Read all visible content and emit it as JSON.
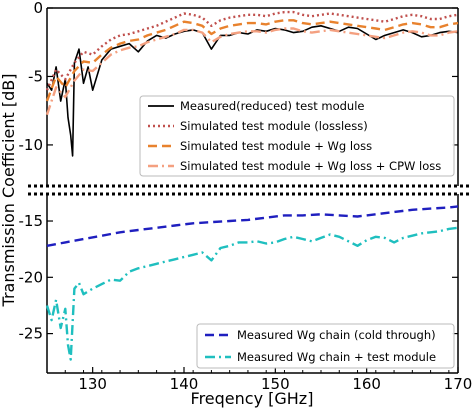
{
  "chart_data": [
    {
      "type": "line",
      "panel": "top",
      "xlim": [
        125,
        170
      ],
      "ylim": [
        -13,
        0
      ],
      "yticks": [
        0,
        -5,
        -10
      ],
      "ytick_labels": [
        "0",
        "-5",
        "-10"
      ],
      "legend_position": "lower-right",
      "series": [
        {
          "name": "Measured(reduced) test module",
          "color": "#000000",
          "style": "solid",
          "x": [
            125,
            125.5,
            126,
            126.5,
            127,
            127.3,
            127.6,
            127.8,
            128,
            128.5,
            129,
            129.5,
            130,
            131,
            132,
            133,
            134,
            135,
            136,
            137,
            138,
            139,
            140,
            141,
            142,
            143,
            144,
            145,
            146,
            147,
            148,
            149,
            150,
            151,
            152,
            153,
            154,
            155,
            156,
            157,
            158,
            159,
            160,
            161,
            162,
            163,
            164,
            165,
            166,
            167,
            168,
            169,
            170
          ],
          "y": [
            -5.5,
            -6.0,
            -4.3,
            -6.8,
            -5.2,
            -8.0,
            -9.3,
            -10.8,
            -4.0,
            -3.0,
            -5.5,
            -4.3,
            -6.0,
            -3.8,
            -3.0,
            -2.8,
            -2.6,
            -3.2,
            -2.4,
            -2.0,
            -2.2,
            -1.9,
            -1.7,
            -1.6,
            -1.8,
            -3.0,
            -2.0,
            -2.0,
            -1.8,
            -1.9,
            -1.6,
            -1.7,
            -1.5,
            -1.6,
            -1.8,
            -1.7,
            -1.4,
            -1.3,
            -1.5,
            -1.7,
            -1.4,
            -1.5,
            -1.9,
            -2.3,
            -2.0,
            -1.8,
            -1.6,
            -1.8,
            -2.1,
            -2.0,
            -1.8,
            -1.7,
            -1.8
          ]
        },
        {
          "name": "Simulated test module (lossless)",
          "color": "#c0504d",
          "style": "dotted",
          "x": [
            125,
            126,
            127,
            128,
            129,
            130,
            131,
            132,
            133,
            134,
            135,
            136,
            137,
            138,
            139,
            140,
            141,
            142,
            143,
            144,
            145,
            146,
            147,
            148,
            149,
            150,
            151,
            152,
            153,
            154,
            155,
            156,
            157,
            158,
            159,
            160,
            161,
            162,
            163,
            164,
            165,
            166,
            167,
            168,
            169,
            170
          ],
          "y": [
            -6.0,
            -4.5,
            -5.2,
            -4.0,
            -3.2,
            -3.4,
            -2.8,
            -2.3,
            -2.0,
            -1.9,
            -1.7,
            -1.5,
            -1.3,
            -1.0,
            -0.7,
            -0.4,
            -0.5,
            -0.7,
            -1.3,
            -0.9,
            -0.7,
            -0.6,
            -0.5,
            -0.5,
            -0.6,
            -0.4,
            -0.3,
            -0.3,
            -0.5,
            -0.6,
            -0.5,
            -0.4,
            -0.5,
            -0.6,
            -0.7,
            -0.8,
            -0.9,
            -1.0,
            -0.8,
            -0.6,
            -0.5,
            -0.6,
            -0.8,
            -0.8,
            -0.6,
            -0.5
          ]
        },
        {
          "name": "Simulated test module + Wg loss",
          "color": "#e8822e",
          "style": "dashed",
          "x": [
            125,
            126,
            127,
            128,
            129,
            130,
            131,
            132,
            133,
            134,
            135,
            136,
            137,
            138,
            139,
            140,
            141,
            142,
            143,
            144,
            145,
            146,
            147,
            148,
            149,
            150,
            151,
            152,
            153,
            154,
            155,
            156,
            157,
            158,
            159,
            160,
            161,
            162,
            163,
            164,
            165,
            166,
            167,
            168,
            169,
            170
          ],
          "y": [
            -6.8,
            -5.0,
            -5.8,
            -4.6,
            -3.9,
            -4.0,
            -3.4,
            -2.9,
            -2.6,
            -2.4,
            -2.3,
            -2.0,
            -1.8,
            -1.6,
            -1.3,
            -1.0,
            -1.1,
            -1.3,
            -1.9,
            -1.5,
            -1.3,
            -1.2,
            -1.1,
            -1.1,
            -1.2,
            -1.0,
            -0.9,
            -0.9,
            -1.1,
            -1.2,
            -1.1,
            -1.0,
            -1.1,
            -1.2,
            -1.3,
            -1.4,
            -1.5,
            -1.6,
            -1.4,
            -1.2,
            -1.1,
            -1.2,
            -1.4,
            -1.4,
            -1.2,
            -1.1
          ]
        },
        {
          "name": "Simulated test module + Wg loss + CPW loss",
          "color": "#f4a080",
          "style": "dashdot",
          "x": [
            125,
            126,
            127,
            128,
            129,
            130,
            131,
            132,
            133,
            134,
            135,
            136,
            137,
            138,
            139,
            140,
            141,
            142,
            143,
            144,
            145,
            146,
            147,
            148,
            149,
            150,
            151,
            152,
            153,
            154,
            155,
            156,
            157,
            158,
            159,
            160,
            161,
            162,
            163,
            164,
            165,
            166,
            167,
            168,
            169,
            170
          ],
          "y": [
            -7.8,
            -5.8,
            -6.5,
            -5.3,
            -4.5,
            -4.6,
            -4.0,
            -3.4,
            -3.1,
            -2.9,
            -2.8,
            -2.5,
            -2.3,
            -2.1,
            -1.9,
            -1.6,
            -1.6,
            -1.8,
            -2.5,
            -2.1,
            -1.9,
            -1.8,
            -1.7,
            -1.7,
            -1.8,
            -1.6,
            -1.5,
            -1.5,
            -1.7,
            -1.8,
            -1.7,
            -1.6,
            -1.7,
            -1.8,
            -1.9,
            -2.0,
            -2.1,
            -2.2,
            -2.0,
            -1.8,
            -1.7,
            -1.8,
            -2.0,
            -2.0,
            -1.8,
            -1.7
          ]
        }
      ]
    },
    {
      "type": "line",
      "panel": "bottom",
      "xlim": [
        125,
        170
      ],
      "ylim": [
        -28.5,
        -12.6
      ],
      "yticks": [
        -15,
        -20,
        -25
      ],
      "ytick_labels": [
        "-15",
        "-20",
        "-25"
      ],
      "xticks": [
        130,
        140,
        150,
        160,
        170
      ],
      "xtick_labels": [
        "130",
        "140",
        "150",
        "160",
        "170"
      ],
      "xlabel": "Freqency [GHz]",
      "ylabel": "Transmission Coefficient [dB]",
      "legend_position": "lower-right",
      "series": [
        {
          "name": "Measured Wg chain (cold through)",
          "color": "#1f1fbf",
          "style": "dashed",
          "x": [
            125,
            127,
            129,
            131,
            133,
            135,
            137,
            139,
            141,
            143,
            145,
            147,
            149,
            151,
            153,
            155,
            157,
            159,
            161,
            163,
            165,
            167,
            169,
            170
          ],
          "y": [
            -17.2,
            -16.9,
            -16.6,
            -16.3,
            -16.0,
            -15.8,
            -15.6,
            -15.4,
            -15.2,
            -15.1,
            -15.0,
            -14.9,
            -14.7,
            -14.5,
            -14.5,
            -14.4,
            -14.5,
            -14.6,
            -14.4,
            -14.2,
            -14.0,
            -13.9,
            -13.8,
            -13.7
          ]
        },
        {
          "name": "Measured Wg chain + test module",
          "color": "#1fbfbf",
          "style": "dashdot",
          "x": [
            125,
            125.5,
            126,
            126.5,
            127,
            127.3,
            127.6,
            128,
            128.5,
            129,
            130,
            131,
            132,
            133,
            134,
            135,
            136,
            137,
            138,
            139,
            140,
            141,
            142,
            143,
            144,
            145,
            146,
            147,
            148,
            149,
            150,
            151,
            152,
            153,
            154,
            155,
            156,
            157,
            158,
            159,
            160,
            161,
            162,
            163,
            164,
            165,
            166,
            167,
            168,
            169,
            170
          ],
          "y": [
            -22.5,
            -23.8,
            -22.0,
            -24.5,
            -22.8,
            -26.0,
            -27.3,
            -21.0,
            -20.5,
            -21.5,
            -21.0,
            -20.6,
            -20.2,
            -20.3,
            -19.5,
            -19.2,
            -19.0,
            -18.8,
            -18.6,
            -18.4,
            -18.2,
            -18.0,
            -17.8,
            -18.5,
            -17.4,
            -17.2,
            -16.9,
            -16.9,
            -16.8,
            -17.0,
            -16.9,
            -16.6,
            -16.4,
            -16.6,
            -16.8,
            -16.5,
            -16.2,
            -16.4,
            -16.8,
            -17.2,
            -16.7,
            -16.4,
            -16.5,
            -16.9,
            -16.5,
            -16.3,
            -16.1,
            -16.0,
            -15.9,
            -15.7,
            -15.6
          ]
        }
      ]
    }
  ]
}
